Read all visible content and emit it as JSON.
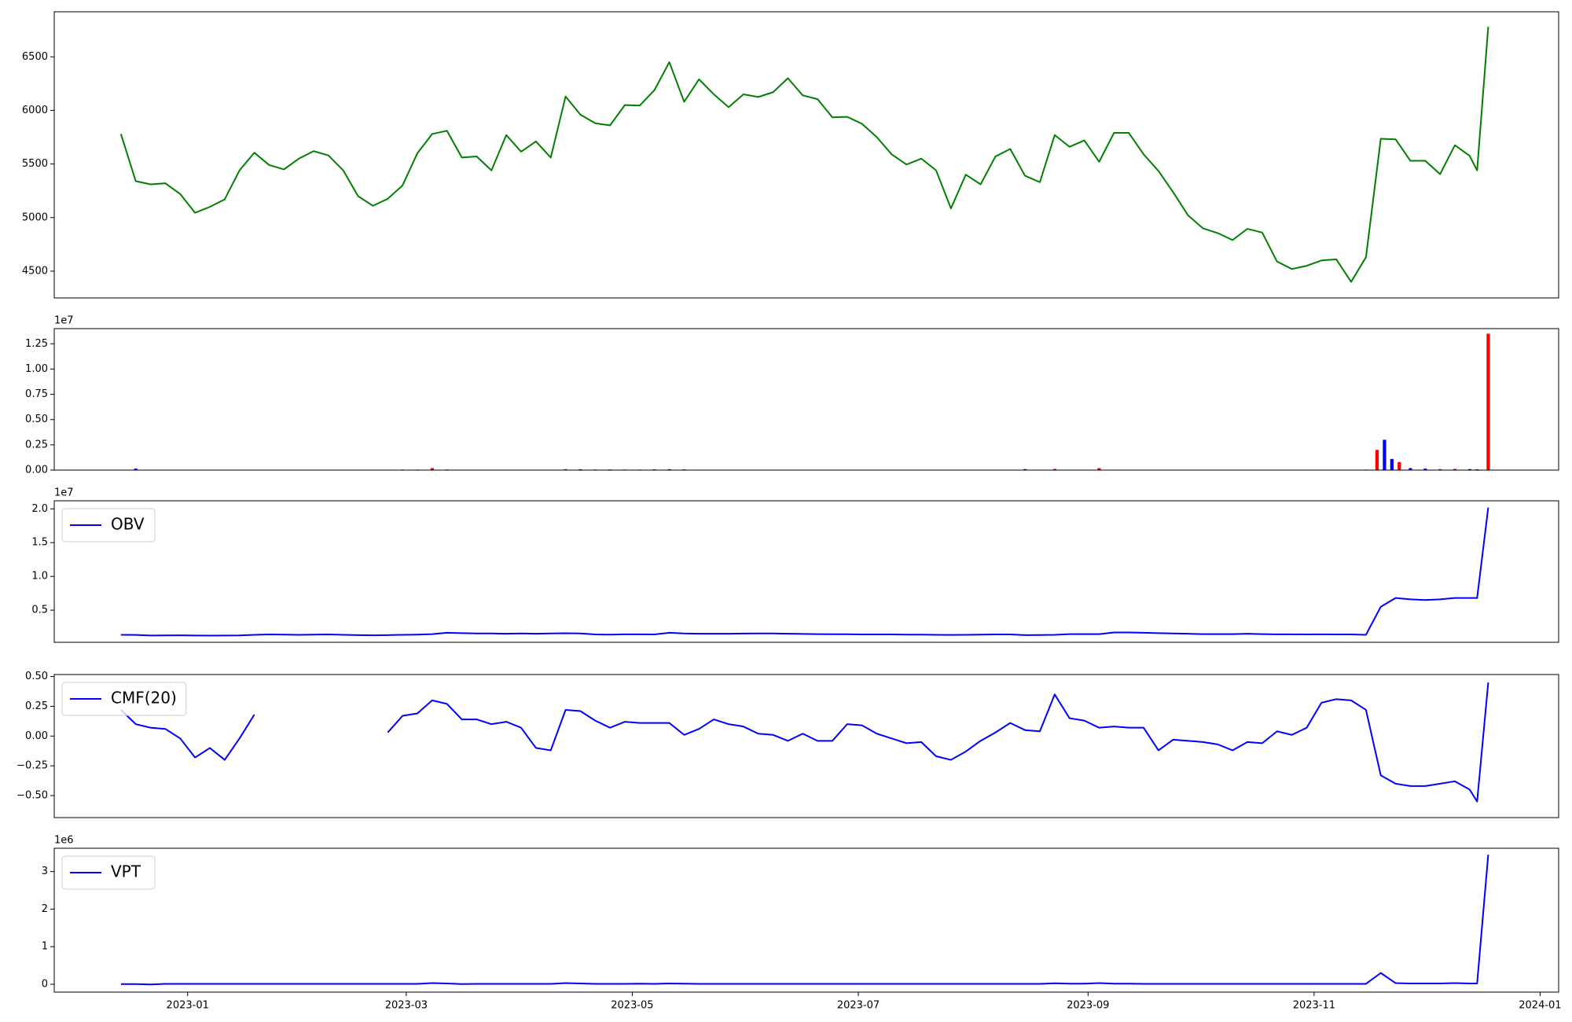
{
  "chart_data": [
    {
      "type": "line",
      "color": "green",
      "x": [
        13,
        17,
        21,
        25,
        29,
        33,
        37,
        41,
        45,
        49,
        53,
        57,
        61,
        65,
        69,
        73,
        77,
        81,
        85,
        89,
        93,
        97,
        101,
        105,
        109,
        113,
        117,
        121,
        125,
        129,
        133,
        137,
        141,
        145,
        149,
        153,
        157,
        161,
        165,
        169,
        173,
        177,
        181,
        185,
        189,
        193,
        197,
        201,
        205,
        209,
        213,
        217,
        221,
        225,
        229,
        233,
        237,
        241,
        245,
        249,
        253,
        257,
        261,
        265,
        269,
        273,
        277,
        281,
        285,
        289,
        293,
        297,
        301,
        305,
        309,
        313,
        317,
        321,
        325,
        329,
        333,
        337,
        341,
        345,
        349,
        353,
        357,
        361,
        365,
        369,
        373,
        377,
        379,
        382
      ],
      "values": [
        5780,
        5340,
        5310,
        5320,
        5220,
        5045,
        5100,
        5170,
        5440,
        5605,
        5490,
        5450,
        5550,
        5620,
        5580,
        5440,
        5200,
        5110,
        5175,
        5300,
        5600,
        5780,
        5810,
        5560,
        5570,
        5440,
        5770,
        5615,
        5710,
        5560,
        6130,
        5960,
        5880,
        5860,
        6050,
        6045,
        6190,
        6450,
        6080,
        6290,
        6150,
        6030,
        6150,
        6125,
        6170,
        6300,
        6140,
        6105,
        5935,
        5940,
        5875,
        5750,
        5590,
        5495,
        5550,
        5440,
        5085,
        5400,
        5310,
        5570,
        5640,
        5390,
        5330,
        5770,
        5660,
        5720,
        5520,
        5790,
        5790,
        5590,
        5435,
        5235,
        5020,
        4900,
        4855,
        4790,
        4895,
        4860,
        4590,
        4520,
        4550,
        4600,
        4610,
        4400,
        4630,
        5735,
        5730,
        5530,
        5530,
        5405,
        5675,
        5575,
        5440,
        6780
      ],
      "xlim": [
        -5,
        401
      ],
      "ylim": [
        4250,
        6920
      ],
      "yticks": [
        4500,
        5000,
        5500,
        6000,
        6500
      ]
    },
    {
      "type": "bar",
      "x": [
        13,
        17,
        21,
        25,
        29,
        33,
        37,
        41,
        45,
        49,
        53,
        57,
        61,
        65,
        69,
        73,
        77,
        81,
        85,
        89,
        93,
        97,
        101,
        105,
        109,
        113,
        117,
        121,
        125,
        129,
        133,
        137,
        141,
        145,
        149,
        153,
        157,
        161,
        165,
        169,
        173,
        177,
        181,
        185,
        189,
        193,
        197,
        201,
        205,
        209,
        213,
        217,
        221,
        225,
        229,
        233,
        237,
        241,
        245,
        249,
        253,
        257,
        261,
        265,
        269,
        273,
        277,
        281,
        285,
        289,
        293,
        297,
        301,
        305,
        309,
        313,
        317,
        321,
        325,
        329,
        333,
        337,
        341,
        345,
        349,
        352,
        354,
        356,
        358,
        361,
        365,
        369,
        373,
        377,
        379,
        382
      ],
      "values": [
        30000,
        150000,
        30000,
        30000,
        20000,
        30000,
        20000,
        30000,
        30000,
        20000,
        20000,
        30000,
        20000,
        20000,
        30000,
        20000,
        20000,
        30000,
        40000,
        60000,
        50000,
        200000,
        60000,
        40000,
        30000,
        40000,
        30000,
        30000,
        30000,
        40000,
        100000,
        80000,
        60000,
        70000,
        60000,
        50000,
        80000,
        90000,
        70000,
        40000,
        30000,
        30000,
        20000,
        40000,
        30000,
        30000,
        20000,
        30000,
        20000,
        20000,
        20000,
        20000,
        30000,
        20000,
        30000,
        20000,
        20000,
        30000,
        20000,
        30000,
        30000,
        100000,
        40000,
        120000,
        40000,
        30000,
        200000,
        40000,
        30000,
        40000,
        30000,
        30000,
        30000,
        20000,
        30000,
        30000,
        20000,
        30000,
        30000,
        30000,
        40000,
        40000,
        30000,
        40000,
        50000,
        2000000,
        3000000,
        1100000,
        800000,
        200000,
        150000,
        100000,
        120000,
        100000,
        80000,
        13500000
      ],
      "colors": [
        "blue",
        "blue",
        "red",
        "blue",
        "red",
        "blue",
        "red",
        "red",
        "blue",
        "red",
        "red",
        "blue",
        "blue",
        "red",
        "blue",
        "red",
        "blue",
        "red",
        "blue",
        "red",
        "blue",
        "red",
        "blue",
        "blue",
        "red",
        "blue",
        "red",
        "blue",
        "red",
        "blue",
        "red",
        "blue",
        "blue",
        "red",
        "red",
        "blue",
        "red",
        "blue",
        "blue",
        "red",
        "blue",
        "red",
        "blue",
        "red",
        "blue",
        "blue",
        "red",
        "blue",
        "red",
        "blue",
        "red",
        "blue",
        "red",
        "blue",
        "red",
        "blue",
        "red",
        "blue",
        "red",
        "blue",
        "red",
        "blue",
        "red",
        "red",
        "blue",
        "red",
        "red",
        "blue",
        "red",
        "blue",
        "blue",
        "red",
        "blue",
        "red",
        "blue",
        "red",
        "blue",
        "red",
        "blue",
        "red",
        "blue",
        "red",
        "blue",
        "red",
        "blue",
        "red",
        "blue",
        "blue",
        "red",
        "blue",
        "blue",
        "red",
        "red",
        "blue",
        "blue",
        "red"
      ],
      "xlim": [
        -5,
        401
      ],
      "ylim": [
        0,
        14000000
      ],
      "y_offset_text": "1e7",
      "yticks": [
        {
          "value": 0,
          "label": "0.00"
        },
        {
          "value": 2500000,
          "label": "0.25"
        },
        {
          "value": 5000000,
          "label": "0.50"
        },
        {
          "value": 7500000,
          "label": "0.75"
        },
        {
          "value": 10000000,
          "label": "1.00"
        },
        {
          "value": 12500000,
          "label": "1.25"
        }
      ]
    },
    {
      "type": "line",
      "legend": "upper left",
      "x": [
        13,
        17,
        21,
        25,
        29,
        33,
        37,
        41,
        45,
        49,
        53,
        57,
        61,
        65,
        69,
        73,
        77,
        81,
        85,
        89,
        93,
        97,
        101,
        105,
        109,
        113,
        117,
        121,
        125,
        129,
        133,
        137,
        141,
        145,
        149,
        153,
        157,
        161,
        165,
        169,
        173,
        177,
        181,
        185,
        189,
        193,
        197,
        201,
        205,
        209,
        213,
        217,
        221,
        225,
        229,
        233,
        237,
        241,
        245,
        249,
        253,
        257,
        261,
        265,
        269,
        273,
        277,
        281,
        285,
        289,
        293,
        297,
        301,
        305,
        309,
        313,
        317,
        321,
        325,
        329,
        333,
        337,
        341,
        345,
        349,
        353,
        357,
        361,
        365,
        369,
        373,
        377,
        379,
        382
      ],
      "series": [
        {
          "name": "OBV",
          "color": "blue",
          "values": [
            1350000,
            1330000,
            1250000,
            1260000,
            1270000,
            1250000,
            1230000,
            1250000,
            1260000,
            1350000,
            1400000,
            1380000,
            1350000,
            1380000,
            1400000,
            1350000,
            1300000,
            1280000,
            1300000,
            1350000,
            1380000,
            1450000,
            1650000,
            1600000,
            1550000,
            1550000,
            1500000,
            1550000,
            1500000,
            1550000,
            1580000,
            1550000,
            1400000,
            1380000,
            1420000,
            1420000,
            1400000,
            1650000,
            1550000,
            1500000,
            1500000,
            1500000,
            1530000,
            1550000,
            1550000,
            1500000,
            1480000,
            1450000,
            1430000,
            1430000,
            1400000,
            1400000,
            1400000,
            1380000,
            1380000,
            1350000,
            1330000,
            1350000,
            1380000,
            1400000,
            1400000,
            1300000,
            1320000,
            1350000,
            1450000,
            1450000,
            1450000,
            1700000,
            1700000,
            1650000,
            1600000,
            1550000,
            1500000,
            1450000,
            1450000,
            1450000,
            1500000,
            1450000,
            1420000,
            1420000,
            1400000,
            1420000,
            1400000,
            1400000,
            1350000,
            5500000,
            6800000,
            6600000,
            6500000,
            6600000,
            6800000,
            6800000,
            6800000,
            20200000
          ]
        }
      ],
      "xlim": [
        -5,
        401
      ],
      "ylim": [
        240000,
        21200000
      ],
      "y_offset_text": "1e7",
      "yticks": [
        {
          "value": 5000000,
          "label": "0.5"
        },
        {
          "value": 10000000,
          "label": "1.0"
        },
        {
          "value": 15000000,
          "label": "1.5"
        },
        {
          "value": 20000000,
          "label": "2.0"
        }
      ]
    },
    {
      "type": "line",
      "legend": "upper left",
      "x": [
        13,
        17,
        21,
        25,
        29,
        33,
        37,
        41,
        45,
        49,
        53,
        57,
        61,
        65,
        69,
        73,
        77,
        81,
        85,
        89,
        93,
        97,
        101,
        105,
        109,
        113,
        117,
        121,
        125,
        129,
        133,
        137,
        141,
        145,
        149,
        153,
        157,
        161,
        165,
        169,
        173,
        177,
        181,
        185,
        189,
        193,
        197,
        201,
        205,
        209,
        213,
        217,
        221,
        225,
        229,
        233,
        237,
        241,
        245,
        249,
        253,
        257,
        261,
        265,
        269,
        273,
        277,
        281,
        285,
        289,
        293,
        297,
        301,
        305,
        309,
        313,
        317,
        321,
        325,
        329,
        333,
        337,
        341,
        345,
        349,
        353,
        357,
        361,
        365,
        369,
        373,
        377,
        379,
        382
      ],
      "series": [
        {
          "name": "CMF(20)",
          "color": "blue",
          "values": [
            0.22,
            0.1,
            0.07,
            0.06,
            -0.02,
            -0.18,
            -0.1,
            -0.2,
            -0.02,
            0.18,
            null,
            null,
            null,
            null,
            null,
            null,
            null,
            null,
            0.03,
            0.17,
            0.19,
            0.3,
            0.27,
            0.14,
            0.14,
            0.1,
            0.12,
            0.07,
            -0.1,
            -0.12,
            0.22,
            0.21,
            0.13,
            0.07,
            0.12,
            0.11,
            0.11,
            0.11,
            0.01,
            0.06,
            0.14,
            0.1,
            0.08,
            0.02,
            0.01,
            -0.04,
            0.02,
            -0.04,
            -0.04,
            0.1,
            0.09,
            0.02,
            -0.02,
            -0.06,
            -0.05,
            -0.17,
            -0.2,
            -0.13,
            -0.04,
            0.03,
            0.11,
            0.05,
            0.04,
            0.35,
            0.15,
            0.13,
            0.07,
            0.08,
            0.07,
            0.07,
            -0.12,
            -0.03,
            -0.04,
            -0.05,
            -0.07,
            -0.12,
            -0.05,
            -0.06,
            0.04,
            0.01,
            0.07,
            0.28,
            0.31,
            0.3,
            0.22,
            -0.33,
            -0.4,
            -0.42,
            -0.42,
            -0.4,
            -0.38,
            -0.45,
            -0.55,
            0.45
          ]
        }
      ],
      "xlim": [
        -5,
        401
      ],
      "ylim": [
        -0.685,
        0.517
      ],
      "yticks": [
        {
          "value": -0.5,
          "label": "−0.50"
        },
        {
          "value": -0.25,
          "label": "−0.25"
        },
        {
          "value": 0,
          "label": "0.00"
        },
        {
          "value": 0.25,
          "label": "0.25"
        },
        {
          "value": 0.5,
          "label": "0.50"
        }
      ]
    },
    {
      "type": "line",
      "legend": "upper left",
      "x": [
        13,
        17,
        21,
        25,
        29,
        33,
        37,
        41,
        45,
        49,
        53,
        57,
        61,
        65,
        69,
        73,
        77,
        81,
        85,
        89,
        93,
        97,
        101,
        105,
        109,
        113,
        117,
        121,
        125,
        129,
        133,
        137,
        141,
        145,
        149,
        153,
        157,
        161,
        165,
        169,
        173,
        177,
        181,
        185,
        189,
        193,
        197,
        201,
        205,
        209,
        213,
        217,
        221,
        225,
        229,
        233,
        237,
        241,
        245,
        249,
        253,
        257,
        261,
        265,
        269,
        273,
        277,
        281,
        285,
        289,
        293,
        297,
        301,
        305,
        309,
        313,
        317,
        321,
        325,
        329,
        333,
        337,
        341,
        345,
        349,
        353,
        357,
        361,
        365,
        369,
        373,
        377,
        379,
        382
      ],
      "series": [
        {
          "name": "VPT",
          "color": "blue",
          "values": [
            5000,
            5000,
            -5000,
            10000,
            10000,
            10000,
            10000,
            10000,
            10000,
            10000,
            10000,
            10000,
            10000,
            10000,
            10000,
            10000,
            10000,
            10000,
            10000,
            10000,
            10000,
            30000,
            20000,
            5000,
            10000,
            10000,
            10000,
            10000,
            10000,
            10000,
            30000,
            20000,
            10000,
            10000,
            10000,
            15000,
            10000,
            20000,
            15000,
            10000,
            10000,
            10000,
            10000,
            10000,
            10000,
            10000,
            10000,
            10000,
            10000,
            10000,
            10000,
            10000,
            10000,
            10000,
            10000,
            10000,
            10000,
            10000,
            10000,
            10000,
            10000,
            10000,
            10000,
            25000,
            15000,
            15000,
            30000,
            15000,
            15000,
            10000,
            10000,
            10000,
            10000,
            10000,
            10000,
            10000,
            10000,
            10000,
            10000,
            10000,
            10000,
            10000,
            10000,
            10000,
            10000,
            300000,
            30000,
            20000,
            20000,
            20000,
            30000,
            20000,
            20000,
            3450000
          ]
        }
      ],
      "xlim": [
        -5,
        401
      ],
      "ylim": [
        -210000,
        3620000
      ],
      "y_offset_text": "1e6",
      "yticks": [
        0,
        {
          "value": 1000000,
          "label": "1"
        },
        {
          "value": 2000000,
          "label": "2"
        },
        {
          "value": 3000000,
          "label": "3"
        }
      ],
      "xticks": [
        {
          "value": 31,
          "label": "2023-01"
        },
        {
          "value": 90,
          "label": "2023-03"
        },
        {
          "value": 151,
          "label": "2023-05"
        },
        {
          "value": 212,
          "label": "2023-07"
        },
        {
          "value": 274,
          "label": "2023-09"
        },
        {
          "value": 335,
          "label": "2023-11"
        },
        {
          "value": 396,
          "label": "2024-01"
        }
      ]
    }
  ]
}
